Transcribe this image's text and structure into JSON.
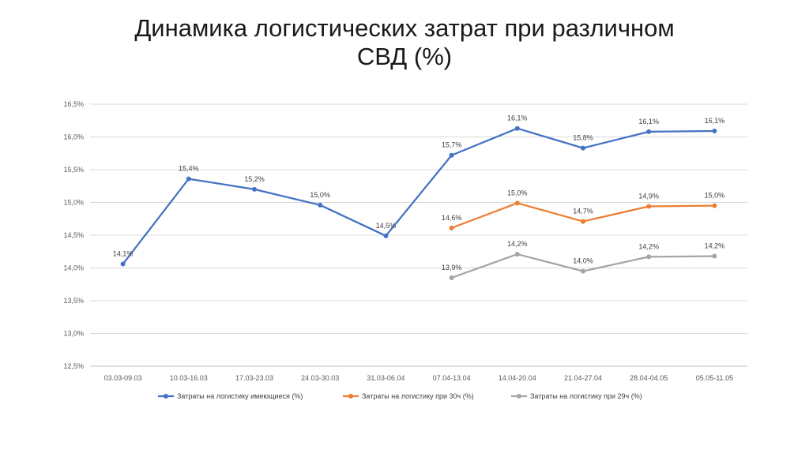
{
  "slide": {
    "title_line1": "Динамика логистических затрат при различном",
    "title_line2": "СВД (%)"
  },
  "chart_data": {
    "type": "line",
    "title": "",
    "xlabel": "",
    "ylabel": "",
    "ylim": [
      12.5,
      16.5
    ],
    "y_ticks": [
      12.5,
      13.0,
      13.5,
      14.0,
      14.5,
      15.0,
      15.5,
      16.0,
      16.5
    ],
    "y_tick_labels": [
      "12,5%",
      "13,0%",
      "13,5%",
      "14,0%",
      "14,5%",
      "15,0%",
      "15,5%",
      "16,0%",
      "16,5%"
    ],
    "grid": "horizontal",
    "legend": "bottom",
    "categories": [
      "03.03-09.03",
      "10.03-16.03",
      "17.03-23.03",
      "24.03-30.03",
      "31.03-06.04",
      "07.04-13.04",
      "14.04-20.04",
      "21.04-27.04",
      "28.04-04.05",
      "05.05-11.05"
    ],
    "series": [
      {
        "name": "Затраты на логистику имеющиеся (%)",
        "color": "#4472C4",
        "values": [
          14.06,
          15.36,
          15.2,
          14.96,
          14.49,
          15.72,
          16.13,
          15.83,
          16.08,
          16.09
        ],
        "labels": [
          "14,1%",
          "15,4%",
          "15,2%",
          "15,0%",
          "14,5%",
          "15,7%",
          "16,1%",
          "15,8%",
          "16,1%",
          "16,1%"
        ]
      },
      {
        "name": "Затраты на логистику при 30ч (%)",
        "color": "#ED7D31",
        "values": [
          null,
          null,
          null,
          null,
          null,
          14.61,
          14.99,
          14.71,
          14.94,
          14.95
        ],
        "labels": [
          null,
          null,
          null,
          null,
          null,
          "14,6%",
          "15,0%",
          "14,7%",
          "14,9%",
          "15,0%"
        ]
      },
      {
        "name": "Затраты на логистику при 29ч (%)",
        "color": "#A5A5A5",
        "values": [
          null,
          null,
          null,
          null,
          null,
          13.85,
          14.21,
          13.95,
          14.17,
          14.18
        ],
        "labels": [
          null,
          null,
          null,
          null,
          null,
          "13,9%",
          "14,2%",
          "14,0%",
          "14,2%",
          "14,2%"
        ]
      }
    ]
  }
}
